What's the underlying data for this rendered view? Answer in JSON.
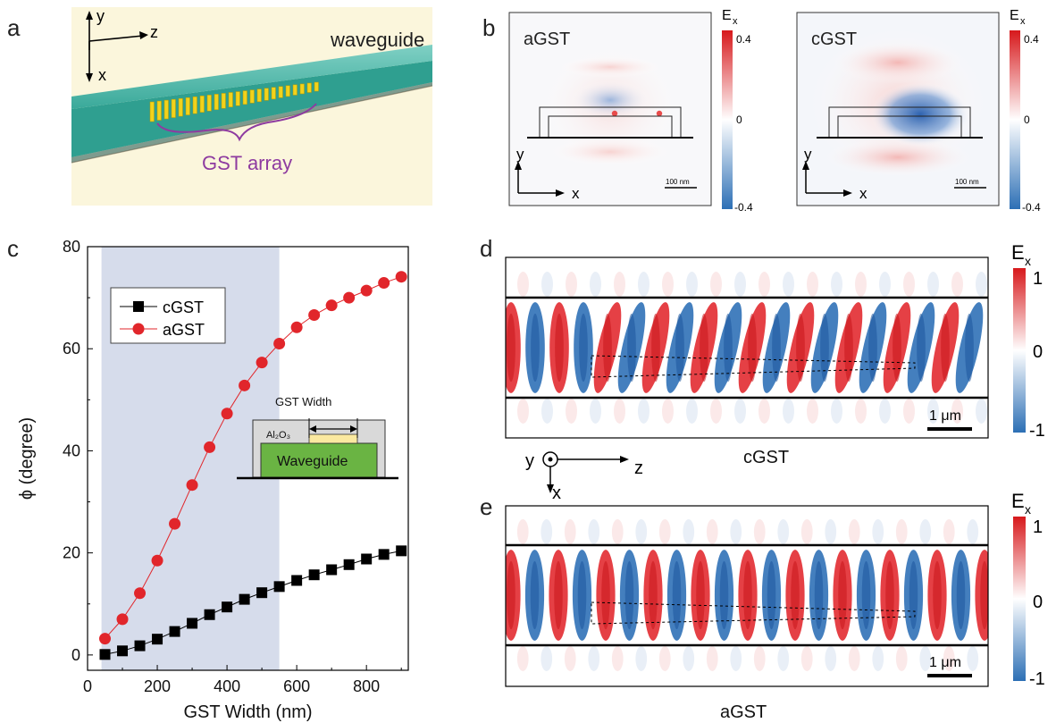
{
  "panel_labels": {
    "a": "a",
    "b": "b",
    "c": "c",
    "d": "d",
    "e": "e"
  },
  "panel_a": {
    "axis_y": "y",
    "axis_z": "z",
    "axis_x": "x",
    "waveguide_label": "waveguide",
    "array_label": "GST array",
    "colors": {
      "background": "#fbf6dc",
      "waveguide": "#3bb3a4",
      "gst": "#f2d21b",
      "brace": "#8e3ba0"
    }
  },
  "panel_b": {
    "maps": [
      {
        "title": "aGST",
        "cbar_label": "E",
        "cbar_sub": "x",
        "cbar_ticks": [
          "0.4",
          "0",
          "-0.4"
        ],
        "axis_y": "y",
        "axis_x": "x",
        "scalebar": "100 nm"
      },
      {
        "title": "cGST",
        "cbar_label": "E",
        "cbar_sub": "x",
        "cbar_ticks": [
          "0.4",
          "0",
          "-0.4"
        ],
        "axis_y": "y",
        "axis_x": "x",
        "scalebar": "100 nm"
      }
    ]
  },
  "panel_de": {
    "d_caption": "cGST",
    "e_caption": "aGST",
    "cbar_label": "E",
    "cbar_sub": "x",
    "cbar_ticks": [
      "1",
      "0",
      "-1"
    ],
    "scalebar": "1 μm",
    "axis_y": "y",
    "axis_x": "x",
    "axis_z": "z",
    "colormap": {
      "positive": "#e1262b",
      "neutral": "#ffffff",
      "negative": "#2a6db5"
    }
  },
  "inset": {
    "title": "GST Width",
    "layer": "Al₂O₃",
    "core": "Waveguide",
    "colors": {
      "core": "#6ab443",
      "gst": "#fbe9a0",
      "cladding": "#d9d9d9"
    }
  },
  "chart_data": {
    "type": "scatter",
    "xlabel": "GST Width (nm)",
    "ylabel": "ϕ (degree)",
    "xlim": [
      0,
      920
    ],
    "ylim": [
      -3,
      80
    ],
    "xticks": [
      0,
      200,
      400,
      600,
      800
    ],
    "yticks": [
      0,
      20,
      40,
      60,
      80
    ],
    "shaded_region_x": [
      40,
      550
    ],
    "shade_color": "#d6dceb",
    "legend_position": "top-left",
    "x": [
      50,
      100,
      150,
      200,
      250,
      300,
      350,
      400,
      450,
      500,
      550,
      600,
      650,
      700,
      750,
      800,
      850,
      900
    ],
    "series": [
      {
        "name": "cGST",
        "color": "#000000",
        "marker": "square",
        "values": [
          0.1,
          0.8,
          1.8,
          3.1,
          4.6,
          6.2,
          7.9,
          9.4,
          10.9,
          12.2,
          13.4,
          14.6,
          15.7,
          16.7,
          17.7,
          18.8,
          19.7,
          20.4
        ]
      },
      {
        "name": "aGST",
        "color": "#e1262b",
        "marker": "circle",
        "values": [
          3.2,
          7.0,
          12.1,
          18.5,
          25.7,
          33.3,
          40.7,
          47.3,
          52.8,
          57.3,
          61.0,
          64.2,
          66.6,
          68.5,
          70.0,
          71.4,
          72.9,
          74.1
        ]
      }
    ]
  }
}
